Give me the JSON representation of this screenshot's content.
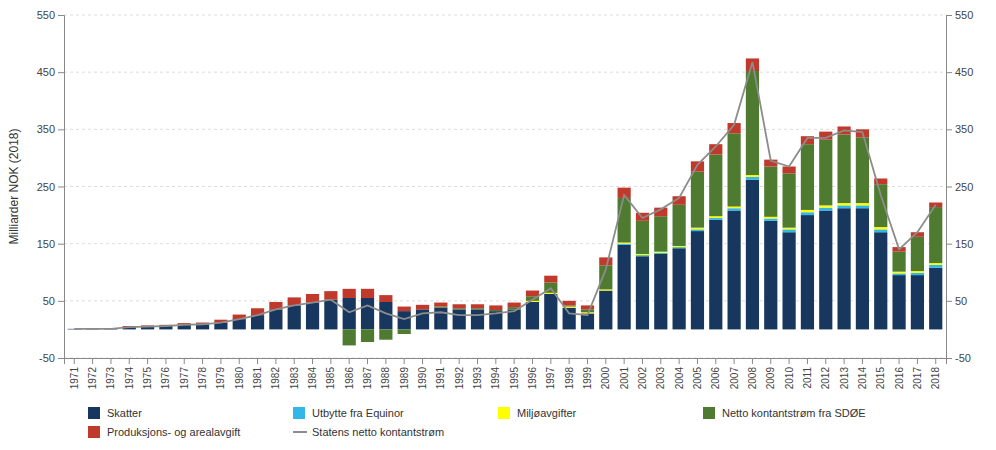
{
  "chart_data": {
    "type": "bar",
    "stacked": true,
    "categories": [
      "1971",
      "1972",
      "1973",
      "1974",
      "1975",
      "1976",
      "1977",
      "1978",
      "1979",
      "1980",
      "1981",
      "1982",
      "1983",
      "1984",
      "1985",
      "1986",
      "1987",
      "1988",
      "1989",
      "1990",
      "1991",
      "1992",
      "1993",
      "1994",
      "1995",
      "1996",
      "1997",
      "1998",
      "1999",
      "2000",
      "2001",
      "2002",
      "2003",
      "2004",
      "2005",
      "2006",
      "2007",
      "2008",
      "2009",
      "2010",
      "2011",
      "2012",
      "2013",
      "2014",
      "2015",
      "2016",
      "2017",
      "2018"
    ],
    "series": [
      {
        "name": "Skatter",
        "color": "#17375e",
        "values": [
          1,
          1,
          1,
          4,
          5,
          6,
          8,
          9,
          12,
          18,
          25,
          35,
          42,
          47,
          52,
          55,
          55,
          48,
          32,
          35,
          38,
          35,
          35,
          32,
          35,
          48,
          62,
          38,
          28,
          68,
          148,
          128,
          132,
          142,
          172,
          192,
          208,
          262,
          190,
          170,
          200,
          208,
          212,
          212,
          170,
          95,
          95,
          108
        ]
      },
      {
        "name": "Utbytte fra Equinor",
        "color": "#31b8e8",
        "values": [
          0,
          0,
          0,
          0,
          0,
          0,
          0,
          0,
          0,
          0,
          0,
          0,
          0,
          0,
          0,
          0,
          0,
          0,
          0,
          0,
          0,
          0,
          0,
          0,
          0,
          0,
          0,
          0,
          0,
          0,
          2,
          2,
          2,
          2,
          3,
          3,
          4,
          5,
          4,
          5,
          5,
          5,
          5,
          5,
          5,
          3,
          4,
          5
        ]
      },
      {
        "name": "Miljøavgifter",
        "color": "#ffff00",
        "values": [
          0,
          0,
          0,
          0,
          0,
          0,
          0,
          0,
          0,
          0,
          0,
          0,
          0,
          0,
          0,
          0,
          0,
          0,
          0,
          0,
          0,
          0,
          0,
          0,
          0,
          2,
          2,
          2,
          2,
          2,
          2,
          2,
          2,
          2,
          3,
          3,
          3,
          3,
          3,
          3,
          4,
          4,
          4,
          4,
          4,
          3,
          3,
          3
        ]
      },
      {
        "name": "Netto kontantstrøm fra SDØE",
        "color": "#4e7b2f",
        "values": [
          0,
          0,
          0,
          0,
          0,
          0,
          0,
          0,
          0,
          0,
          0,
          0,
          0,
          0,
          0,
          -28,
          -22,
          -18,
          -8,
          0,
          2,
          2,
          2,
          2,
          4,
          8,
          18,
          2,
          5,
          42,
          78,
          58,
          62,
          72,
          98,
          108,
          128,
          182,
          88,
          95,
          115,
          115,
          120,
          115,
          75,
          35,
          60,
          98
        ]
      },
      {
        "name": "Produksjons- og arealavgift",
        "color": "#c0392b",
        "values": [
          0,
          0,
          0,
          2,
          2,
          2,
          3,
          3,
          5,
          8,
          12,
          13,
          14,
          15,
          15,
          16,
          16,
          12,
          8,
          8,
          7,
          7,
          7,
          8,
          8,
          10,
          12,
          8,
          7,
          14,
          18,
          14,
          15,
          15,
          18,
          18,
          18,
          22,
          12,
          12,
          14,
          14,
          14,
          14,
          10,
          8,
          8,
          8
        ]
      },
      {
        "name": "Statens netto kontantstrøm",
        "type": "line",
        "color": "#8c8c8c",
        "values": [
          1,
          1,
          1,
          4,
          5,
          6,
          8,
          9,
          12,
          18,
          25,
          35,
          42,
          47,
          52,
          30,
          42,
          28,
          18,
          28,
          30,
          25,
          25,
          28,
          32,
          52,
          72,
          28,
          25,
          105,
          235,
          195,
          210,
          230,
          288,
          320,
          358,
          468,
          295,
          285,
          335,
          335,
          348,
          345,
          235,
          140,
          170,
          218
        ]
      }
    ],
    "ylabel": "Milliarder NOK (2018)",
    "ylim": [
      -50,
      550
    ],
    "yticks": [
      -50,
      50,
      150,
      250,
      350,
      450,
      550
    ],
    "y2lim": [
      -50,
      550
    ],
    "y2ticks": [
      -50,
      50,
      150,
      250,
      350,
      450,
      550
    ],
    "grid": true,
    "legend": "bottom"
  }
}
